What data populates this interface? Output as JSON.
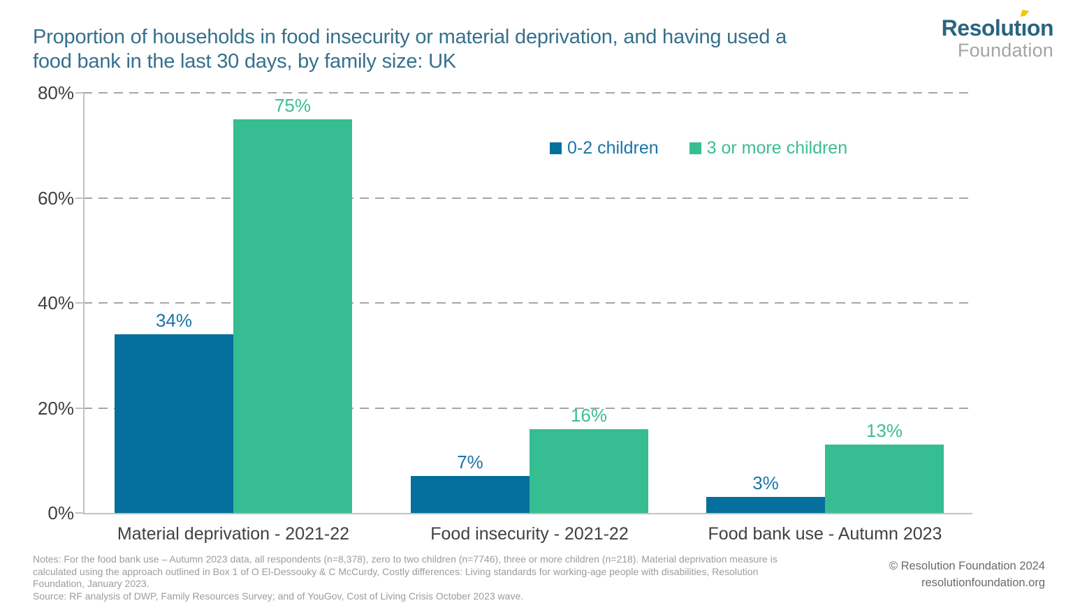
{
  "title": {
    "line1": "Proportion of households in food insecurity or material deprivation, and having used a",
    "line2": "food bank in the last 30 days, by family size: UK"
  },
  "logo": {
    "brand_pre": "Resolut",
    "brand_i": "ı",
    "brand_post": "on",
    "sub": "Foundation"
  },
  "chart_data": {
    "type": "bar",
    "title": "Proportion of households in food insecurity or material deprivation, and having used a food bank in the last 30 days, by family size: UK",
    "categories": [
      "Material deprivation - 2021-22",
      "Food insecurity - 2021-22",
      "Food bank use - Autumn 2023"
    ],
    "series": [
      {
        "name": "0-2 children",
        "values": [
          34,
          7,
          3
        ],
        "value_labels": [
          "34%",
          "7%",
          "3%"
        ],
        "color": "#046F9D",
        "label_color": "#1B74A8"
      },
      {
        "name": "3 or more children",
        "values": [
          75,
          16,
          13
        ],
        "value_labels": [
          "75%",
          "16%",
          "13%"
        ],
        "color": "#36BD92",
        "label_color": "#3CBD95"
      }
    ],
    "xlabel": "",
    "ylabel": "",
    "ylim": [
      0,
      80
    ],
    "ytick_values": [
      0,
      20,
      40,
      60,
      80
    ],
    "ytick_labels": [
      "0%",
      "20%",
      "40%",
      "60%",
      "80%"
    ],
    "grid": "horizontal-dashed",
    "legend_position": "top-right-inside"
  },
  "footer": {
    "notes_lines": [
      "Notes: For the food bank use – Autumn 2023 data, all respondents (n=8,378), zero to two children (n=7746), three or more children (n=218). Material deprivation measure is",
      "calculated using the approach outlined in Box 1 of O El-Dessouky & C McCurdy, Costly differences: Living standards for working-age people with disabilities, Resolution",
      "Foundation, January 2023.",
      "Source: RF analysis of DWP, Family Resources Survey; and of YouGov, Cost of Living Crisis October 2023 wave."
    ],
    "copyright": "© Resolution Foundation 2024",
    "website": "resolutionfoundation.org"
  },
  "colors": {
    "background": "#FFFFFF",
    "title": "#35708E",
    "axis": "#C2C2C2",
    "gridline": "#A6A6A6",
    "tick_label": "#3F3F3F",
    "category_label": "#414141",
    "notes": "#9C9C9C",
    "credit": "#6A6A6A",
    "logo_brand": "#2A6480",
    "logo_sub": "#A5A5A5",
    "logo_flag": "#F7C600"
  }
}
